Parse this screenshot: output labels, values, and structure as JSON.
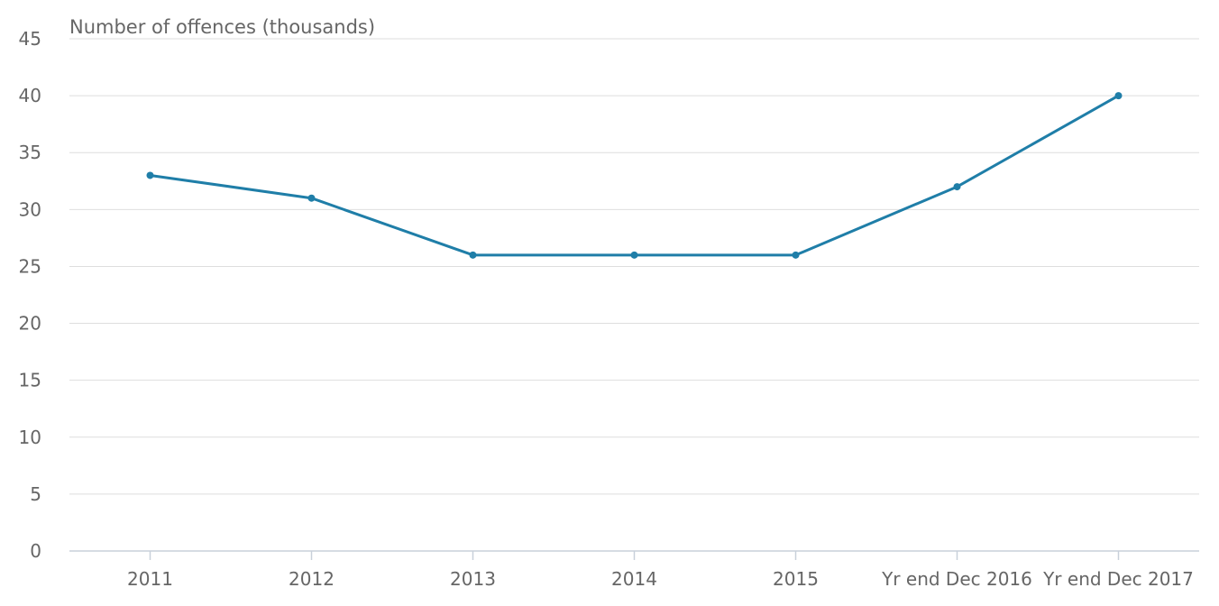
{
  "chart_data": {
    "type": "line",
    "title": "",
    "ylabel": "Number of offences (thousands)",
    "xlabel": "",
    "categories": [
      "2011",
      "2012",
      "2013",
      "2014",
      "2015",
      "Yr end Dec 2016",
      "Yr end Dec 2017"
    ],
    "series": [
      {
        "values": [
          33,
          31,
          26,
          26,
          26,
          32,
          40
        ],
        "color": "#1f7ea8"
      }
    ],
    "ylim": [
      0,
      45
    ],
    "yticks": [
      0,
      5,
      10,
      15,
      20,
      25,
      30,
      35,
      40,
      45
    ],
    "grid": true,
    "legend": "none"
  }
}
